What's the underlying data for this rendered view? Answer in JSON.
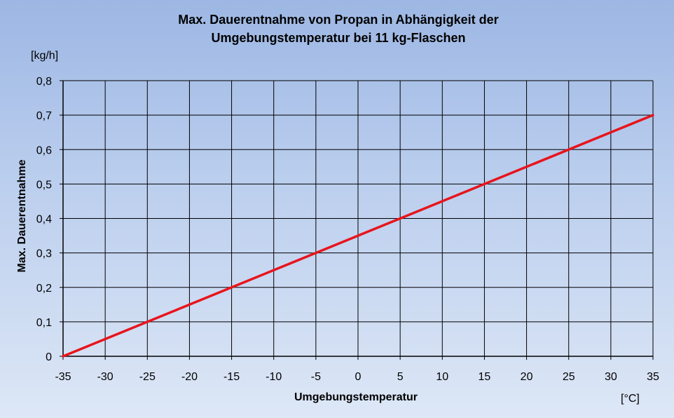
{
  "chart_data": {
    "type": "line",
    "title": "Max. Dauerentnahme von Propan in Abhängigkeit der Umgebungstemperatur bei 11 kg-Flaschen",
    "title_lines": [
      "Max. Dauerentnahme von Propan in Abhängigkeit der",
      "Umgebungstemperatur bei 11 kg-Flaschen"
    ],
    "xlabel": "Umgebungstemperatur",
    "ylabel": "Max. Dauerentnahme",
    "x_unit": "[°C]",
    "y_unit": "[kg/h]",
    "xlim": [
      -35,
      35
    ],
    "ylim": [
      0,
      0.8
    ],
    "x_ticks": [
      -35,
      -30,
      -25,
      -20,
      -15,
      -10,
      -5,
      0,
      5,
      10,
      15,
      20,
      25,
      30,
      35
    ],
    "y_ticks": [
      0,
      0.1,
      0.2,
      0.3,
      0.4,
      0.5,
      0.6,
      0.7,
      0.8
    ],
    "x_tick_labels": [
      "-35",
      "-30",
      "-25",
      "-20",
      "-15",
      "-10",
      "-5",
      "0",
      "5",
      "10",
      "15",
      "20",
      "25",
      "30",
      "35"
    ],
    "y_tick_labels": [
      "0",
      "0,1",
      "0,2",
      "0,3",
      "0,4",
      "0,5",
      "0,6",
      "0,7",
      "0,8"
    ],
    "grid": true,
    "legend": "none",
    "series": [
      {
        "color": "#e8141c",
        "x": [
          -35,
          35
        ],
        "y": [
          0,
          0.7
        ]
      }
    ]
  },
  "colors": {
    "background_top": "#9db7e4",
    "background_bottom": "#dde7f6",
    "grid": "#000000",
    "line": "#e8141c"
  }
}
